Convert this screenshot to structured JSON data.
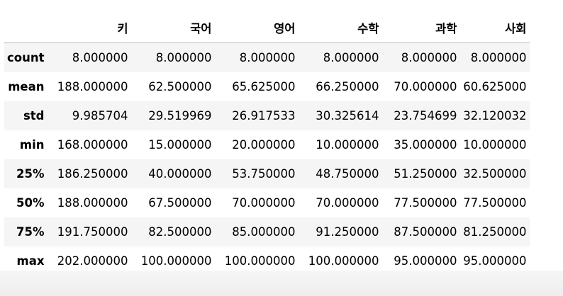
{
  "columns": [
    "키",
    "국어",
    "영어",
    "수학",
    "과학",
    "사회"
  ],
  "rows": [
    {
      "label": "count",
      "values": [
        "8.000000",
        "8.000000",
        "8.000000",
        "8.000000",
        "8.000000",
        "8.000000"
      ]
    },
    {
      "label": "mean",
      "values": [
        "188.000000",
        "62.500000",
        "65.625000",
        "66.250000",
        "70.000000",
        "60.625000"
      ]
    },
    {
      "label": "std",
      "values": [
        "9.985704",
        "29.519969",
        "26.917533",
        "30.325614",
        "23.754699",
        "32.120032"
      ]
    },
    {
      "label": "min",
      "values": [
        "168.000000",
        "15.000000",
        "20.000000",
        "10.000000",
        "35.000000",
        "10.000000"
      ]
    },
    {
      "label": "25%",
      "values": [
        "186.250000",
        "40.000000",
        "53.750000",
        "48.750000",
        "51.250000",
        "32.500000"
      ]
    },
    {
      "label": "50%",
      "values": [
        "188.000000",
        "67.500000",
        "70.000000",
        "70.000000",
        "77.500000",
        "77.500000"
      ]
    },
    {
      "label": "75%",
      "values": [
        "191.750000",
        "82.500000",
        "85.000000",
        "91.250000",
        "87.500000",
        "81.250000"
      ]
    },
    {
      "label": "max",
      "values": [
        "202.000000",
        "100.000000",
        "100.000000",
        "100.000000",
        "95.000000",
        "95.000000"
      ]
    }
  ]
}
